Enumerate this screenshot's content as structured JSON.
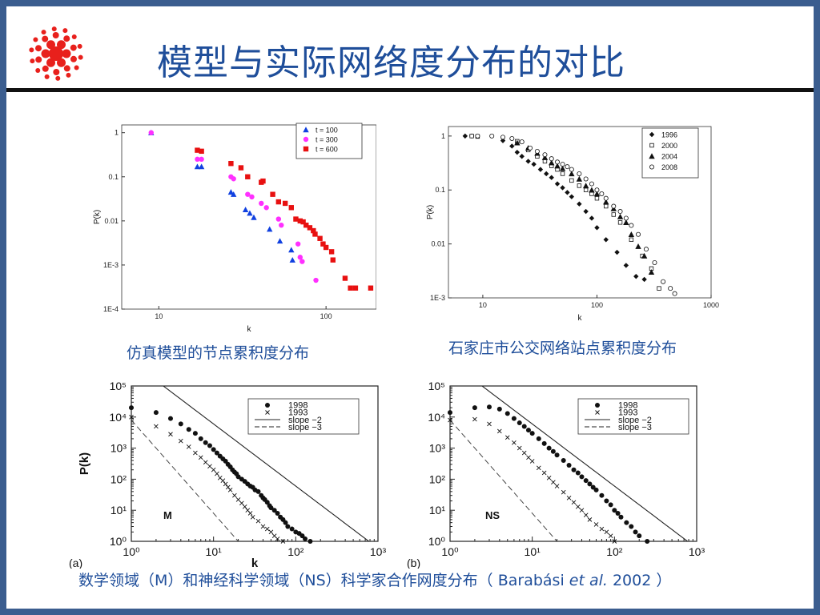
{
  "title": "模型与实际网络度分布的对比",
  "captions": {
    "top_left": "仿真模型的节点累积度分布",
    "top_right": "石家庄市公交网络站点累积度分布",
    "bottom_pre": "数学领域（M）和神经科学领域（NS）科学家合作网度分布（ Barabási ",
    "bottom_italic": "et al.",
    "bottom_post": "  2002 ）"
  },
  "colors": {
    "title": "#1f4e9a",
    "frame": "#3b5d8f",
    "blue": "#1040e0",
    "magenta": "#ff30ff",
    "red": "#e81010"
  },
  "chart_data": [
    {
      "type": "scatter",
      "id": "tl",
      "xlabel": "k",
      "ylabel": "P(k)",
      "xscale": "log",
      "yscale": "log",
      "xlim": [
        6,
        200
      ],
      "ylim": [
        0.0001,
        1.5
      ],
      "yticks": [
        1,
        0.1,
        0.01,
        0.001,
        0.0001
      ],
      "yticklabels": [
        "1",
        "0.1",
        "0.01",
        "1E-3",
        "1E-4"
      ],
      "xticks": [
        10,
        100
      ],
      "xticklabels": [
        "10",
        "100"
      ],
      "legend_position": "top-right",
      "series": [
        {
          "name": "t = 100",
          "marker": "triangle",
          "color": "#1040e0",
          "x": [
            9,
            17,
            18,
            27,
            28,
            33,
            35,
            37,
            46,
            53,
            62,
            63
          ],
          "y": [
            1,
            0.17,
            0.17,
            0.045,
            0.04,
            0.018,
            0.015,
            0.012,
            0.0065,
            0.0035,
            0.0022,
            0.0013
          ]
        },
        {
          "name": "t = 300",
          "marker": "circle",
          "color": "#ff30ff",
          "x": [
            9,
            17,
            18,
            27,
            28,
            34,
            36,
            41,
            44,
            52,
            54,
            68,
            70,
            72,
            87
          ],
          "y": [
            1,
            0.25,
            0.25,
            0.1,
            0.09,
            0.04,
            0.035,
            0.025,
            0.02,
            0.011,
            0.008,
            0.003,
            0.0015,
            0.0012,
            0.00045
          ]
        },
        {
          "name": "t = 600",
          "marker": "square",
          "color": "#e81010",
          "x": [
            17,
            18,
            27,
            31,
            34,
            41,
            42,
            48,
            52,
            57,
            62,
            66,
            70,
            73,
            76,
            80,
            84,
            86,
            92,
            96,
            100,
            108,
            110,
            130,
            140,
            150,
            185
          ],
          "y": [
            0.4,
            0.38,
            0.2,
            0.16,
            0.1,
            0.075,
            0.08,
            0.04,
            0.027,
            0.025,
            0.02,
            0.011,
            0.01,
            0.0095,
            0.008,
            0.007,
            0.006,
            0.005,
            0.004,
            0.003,
            0.0025,
            0.002,
            0.0013,
            0.0005,
            0.0003,
            0.0003,
            0.0003
          ]
        }
      ]
    },
    {
      "type": "scatter",
      "id": "tr",
      "xlabel": "k",
      "ylabel": "P(k)",
      "xscale": "log",
      "yscale": "log",
      "xlim": [
        5,
        1000
      ],
      "ylim": [
        0.001,
        1.5
      ],
      "yticks": [
        1,
        0.1,
        0.01,
        0.001
      ],
      "yticklabels": [
        "1",
        "0.1",
        "0.01",
        "1E-3"
      ],
      "xticks": [
        10,
        100,
        1000
      ],
      "xticklabels": [
        "10",
        "100",
        "1000"
      ],
      "legend_position": "top-right",
      "series": [
        {
          "name": "1996",
          "marker": "diamond-filled",
          "x": [
            7,
            8,
            15,
            18,
            20,
            22,
            25,
            28,
            32,
            36,
            40,
            45,
            50,
            55,
            60,
            70,
            80,
            90,
            100,
            120,
            150,
            180,
            220,
            260
          ],
          "y": [
            1,
            1,
            0.82,
            0.65,
            0.5,
            0.42,
            0.34,
            0.3,
            0.24,
            0.2,
            0.17,
            0.13,
            0.11,
            0.09,
            0.075,
            0.055,
            0.04,
            0.03,
            0.02,
            0.012,
            0.007,
            0.004,
            0.0025,
            0.0022
          ]
        },
        {
          "name": "2000",
          "marker": "square-open",
          "x": [
            8,
            9,
            20,
            25,
            30,
            35,
            40,
            45,
            50,
            60,
            70,
            80,
            90,
            100,
            120,
            140,
            160,
            200,
            250,
            300,
            350
          ],
          "y": [
            1,
            0.98,
            0.8,
            0.55,
            0.42,
            0.34,
            0.28,
            0.24,
            0.2,
            0.15,
            0.12,
            0.1,
            0.085,
            0.07,
            0.05,
            0.035,
            0.025,
            0.012,
            0.006,
            0.0035,
            0.0015
          ]
        },
        {
          "name": "2004",
          "marker": "triangle-filled",
          "x": [
            20,
            25,
            30,
            35,
            40,
            45,
            50,
            60,
            70,
            80,
            90,
            100,
            120,
            140,
            160,
            180,
            200,
            230,
            260,
            300
          ],
          "y": [
            0.75,
            0.6,
            0.48,
            0.4,
            0.32,
            0.28,
            0.25,
            0.2,
            0.16,
            0.12,
            0.1,
            0.085,
            0.06,
            0.045,
            0.032,
            0.025,
            0.015,
            0.009,
            0.006,
            0.003
          ]
        },
        {
          "name": "2008",
          "marker": "circle-open",
          "x": [
            9,
            12,
            15,
            18,
            22,
            26,
            30,
            35,
            40,
            45,
            50,
            55,
            60,
            70,
            80,
            90,
            100,
            110,
            120,
            140,
            160,
            180,
            200,
            230,
            270,
            320,
            380,
            440,
            480
          ],
          "y": [
            1,
            1,
            0.95,
            0.9,
            0.78,
            0.6,
            0.52,
            0.45,
            0.38,
            0.33,
            0.3,
            0.27,
            0.24,
            0.2,
            0.16,
            0.13,
            0.1,
            0.085,
            0.07,
            0.05,
            0.04,
            0.03,
            0.022,
            0.015,
            0.008,
            0.0045,
            0.002,
            0.0015,
            0.0012
          ]
        }
      ]
    },
    {
      "type": "scatter",
      "id": "bl",
      "panel_label": "(a)",
      "inset_label": "M",
      "xlabel": "k",
      "ylabel": "P(k)",
      "xscale": "log",
      "yscale": "log",
      "xlim": [
        1,
        1000
      ],
      "ylim": [
        1,
        100000
      ],
      "yticklabels": [
        "10⁰",
        "10¹",
        "10²",
        "10³",
        "10⁴",
        "10⁵"
      ],
      "xticklabels": [
        "10⁰",
        "10¹",
        "10²",
        "10³"
      ],
      "legend_position": "top-right",
      "series": [
        {
          "name": "1998",
          "marker": "dot",
          "x": [
            1,
            2,
            3,
            4,
            5,
            6,
            7,
            8,
            9,
            10,
            11,
            12,
            13,
            14,
            15,
            16,
            17,
            18,
            19,
            20,
            22,
            24,
            26,
            28,
            30,
            32,
            35,
            38,
            40,
            42,
            45,
            48,
            50,
            55,
            60,
            65,
            70,
            75,
            80,
            90,
            100,
            110,
            120,
            130,
            150
          ],
          "y": [
            20000,
            14000,
            9000,
            6000,
            4000,
            3000,
            2000,
            1500,
            1200,
            900,
            700,
            550,
            450,
            380,
            300,
            250,
            200,
            170,
            150,
            120,
            100,
            85,
            70,
            60,
            55,
            45,
            40,
            30,
            25,
            22,
            18,
            14,
            12,
            10,
            8,
            6,
            5,
            4,
            3,
            2.5,
            2,
            1.8,
            1.5,
            1.2,
            1
          ]
        },
        {
          "name": "1993",
          "marker": "cross",
          "x": [
            1,
            2,
            3,
            4,
            5,
            6,
            7,
            8,
            9,
            10,
            11,
            12,
            13,
            14,
            15,
            16,
            18,
            20,
            22,
            24,
            26,
            28,
            30,
            35,
            40,
            45,
            50,
            55,
            60,
            70
          ],
          "y": [
            10000,
            5000,
            2800,
            1700,
            1100,
            700,
            500,
            350,
            260,
            200,
            150,
            110,
            90,
            70,
            55,
            45,
            30,
            22,
            17,
            13,
            10,
            8,
            6,
            4.5,
            3,
            2.5,
            2,
            1.5,
            1.2,
            1
          ]
        },
        {
          "name": "slope −2",
          "style": "solid"
        },
        {
          "name": "slope −3",
          "style": "dashed"
        }
      ]
    },
    {
      "type": "scatter",
      "id": "br",
      "panel_label": "(b)",
      "inset_label": "NS",
      "xlabel": "",
      "ylabel": "",
      "xscale": "log",
      "yscale": "log",
      "xlim": [
        1,
        1000
      ],
      "ylim": [
        1,
        100000
      ],
      "yticklabels": [
        "10⁰",
        "10¹",
        "10²",
        "10³",
        "10⁴",
        "10⁵"
      ],
      "xticklabels": [
        "10⁰",
        "10¹",
        "10²",
        "10³"
      ],
      "legend_position": "top-right",
      "series": [
        {
          "name": "1998",
          "marker": "dot",
          "x": [
            1,
            2,
            3,
            4,
            5,
            6,
            7,
            8,
            9,
            10,
            12,
            14,
            16,
            18,
            20,
            24,
            28,
            32,
            36,
            40,
            45,
            50,
            55,
            60,
            70,
            80,
            90,
            100,
            110,
            120,
            140,
            160,
            180,
            200,
            250
          ],
          "y": [
            14000,
            20000,
            21000,
            18000,
            13000,
            9000,
            6500,
            5000,
            3800,
            3000,
            2000,
            1400,
            1000,
            780,
            600,
            400,
            280,
            200,
            160,
            120,
            90,
            70,
            55,
            45,
            30,
            20,
            15,
            10,
            8,
            6,
            4,
            3,
            2,
            1.5,
            1
          ]
        },
        {
          "name": "1993",
          "marker": "cross",
          "x": [
            1,
            2,
            3,
            4,
            5,
            6,
            7,
            8,
            9,
            10,
            12,
            14,
            16,
            18,
            20,
            24,
            28,
            32,
            36,
            40,
            45,
            50,
            60,
            70,
            80,
            90,
            100
          ],
          "y": [
            8000,
            8500,
            6000,
            3500,
            2200,
            1500,
            1000,
            700,
            500,
            380,
            230,
            160,
            110,
            80,
            60,
            38,
            25,
            18,
            13,
            10,
            7,
            5,
            3.5,
            2.5,
            2,
            1.5,
            1
          ]
        },
        {
          "name": "slope −2",
          "style": "solid"
        },
        {
          "name": "slope −3",
          "style": "dashed"
        }
      ]
    }
  ]
}
